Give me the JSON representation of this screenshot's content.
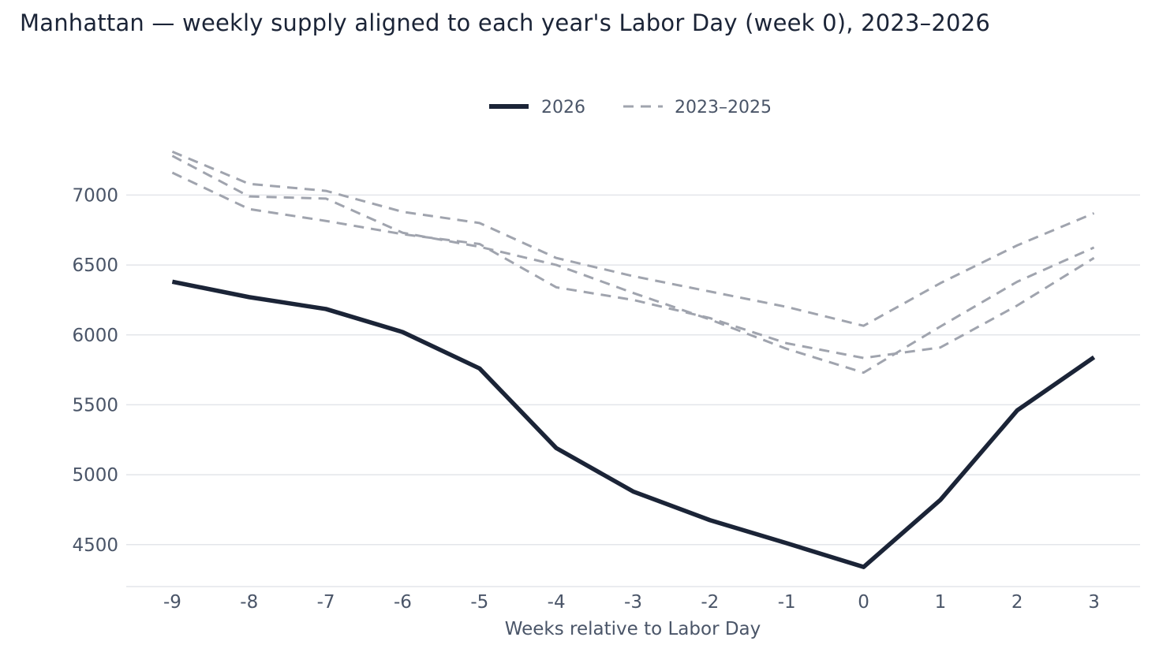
{
  "chart_data": {
    "type": "line",
    "title": "Manhattan — weekly supply aligned to each year's Labor Day (week 0), 2023–2026",
    "xlabel": "Weeks relative to Labor Day",
    "ylabel": "",
    "x": [
      -9,
      -8,
      -7,
      -6,
      -5,
      -4,
      -3,
      -2,
      -1,
      0,
      1,
      2,
      3
    ],
    "x_tick_labels": [
      "-9",
      "-8",
      "-7",
      "-6",
      "-5",
      "-4",
      "-3",
      "-2",
      "-1",
      "0",
      "1",
      "2",
      "3"
    ],
    "y_ticks": [
      4500,
      5000,
      5500,
      6000,
      6500,
      7000
    ],
    "y_tick_labels": [
      "4500",
      "5000",
      "5500",
      "6000",
      "6500",
      "7000"
    ],
    "ylim": [
      4200,
      7380
    ],
    "xlim": [
      -9.6,
      3.6
    ],
    "grid": "horizontal",
    "legend_placement": "top-center",
    "legend": [
      {
        "label": "2026",
        "style": "solid",
        "color": "#1b2437"
      },
      {
        "label": "2023–2025",
        "style": "dashed",
        "color": "#a0a4ae"
      }
    ],
    "series": [
      {
        "name": "2026",
        "style": "solid",
        "color": "#1b2437",
        "values": [
          6380,
          6270,
          6185,
          6020,
          5760,
          5190,
          4880,
          4675,
          4510,
          4340,
          4820,
          5460,
          5840
        ]
      },
      {
        "style": "dashed",
        "color": "#a0a4ae",
        "values": [
          7310,
          7080,
          7030,
          6880,
          6800,
          6550,
          6420,
          6310,
          6200,
          6065,
          6370,
          6640,
          6870
        ]
      },
      {
        "style": "dashed",
        "color": "#a0a4ae",
        "values": [
          7280,
          6990,
          6975,
          6730,
          6630,
          6500,
          6300,
          6110,
          5900,
          5730,
          6060,
          6380,
          6625
        ]
      },
      {
        "style": "dashed",
        "color": "#a0a4ae",
        "values": [
          7160,
          6900,
          6815,
          6720,
          6650,
          6340,
          6250,
          6120,
          5940,
          5835,
          5910,
          6210,
          6550
        ]
      }
    ]
  }
}
